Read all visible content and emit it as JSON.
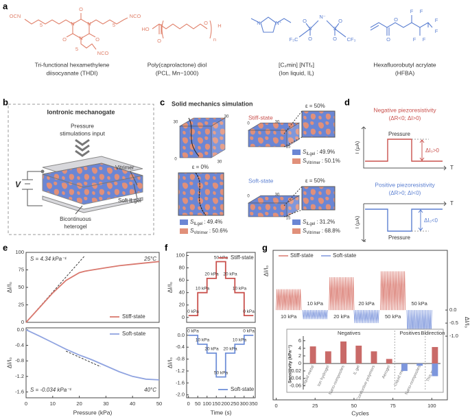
{
  "panels": {
    "a": {
      "label": "a",
      "molecules": [
        {
          "atoms": [
            "OCN",
            "NCO",
            "NCO",
            "O",
            "O",
            "O",
            "N",
            "N",
            "N",
            "5",
            "5",
            "5"
          ],
          "caption": [
            "Tri-functional hexamethylene",
            "diisocyanate (THDI)"
          ]
        },
        {
          "atoms": [
            "HO",
            "O",
            "O",
            "n",
            "H"
          ],
          "caption": [
            "Poly(caprolactone) diol",
            "(PCL, Mn~1000)"
          ]
        },
        {
          "atoms": [
            "N",
            "N⁺",
            "N⁻",
            "S",
            "S",
            "O",
            "O",
            "O",
            "O",
            "F₃C",
            "CF₃"
          ],
          "caption": [
            "[C₂min] [NTf₂]",
            "(Ion liquid, IL)"
          ]
        },
        {
          "atoms": [
            "O",
            "O",
            "F",
            "F",
            "F",
            "F",
            "F",
            "F"
          ],
          "caption": [
            "Hexafluorobutyl acrylate",
            "(HFBA)"
          ]
        }
      ]
    },
    "b": {
      "label": "b",
      "title": "Iontronic mechanogate",
      "input": [
        "Pressure",
        "stimulations input"
      ],
      "voltage": "V",
      "layers": [
        "Vitrimer",
        "Soft ILgel"
      ],
      "heterogel": [
        "Bicontinuous",
        "heterogel"
      ]
    },
    "c": {
      "label": "c",
      "title": "Solid mechanics simulation",
      "symbol": "S",
      "separator": ":",
      "initial": {
        "strain": "ε = 0%",
        "ticks": [
          "30",
          "0",
          "30",
          "30"
        ],
        "fractions": [
          {
            "sub": "ILgel",
            "value": "49.4%"
          },
          {
            "sub": "Vitrimer",
            "value": "50.6%"
          }
        ]
      },
      "states": [
        {
          "name": "Stiff-state",
          "strain": "ε = 50%",
          "ticks": [
            "0",
            "30",
            "15"
          ],
          "fractions": [
            {
              "sub": "ILgel",
              "value": "49.9%"
            },
            {
              "sub": "Vitrimer",
              "value": "50.1%"
            }
          ]
        },
        {
          "name": "Soft-state",
          "strain": "ε = 50%",
          "ticks": [
            "0",
            "30",
            "15"
          ],
          "fractions": [
            {
              "sub": "ILgel",
              "value": "31.2%"
            },
            {
              "sub": "Vitrimer",
              "value": "68.8%"
            }
          ]
        }
      ]
    },
    "d": {
      "label": "d",
      "negative": {
        "title": "Negative piezoresistivity",
        "condition": "(ΔR<0; ΔI>0)",
        "ylabel": "I (μA)",
        "xlabel": "T",
        "pressure": "Pressure",
        "delta": "ΔI₀>0"
      },
      "positive": {
        "title": "Positive piezoresistivity",
        "condition": "(ΔR>0; ΔI<0)",
        "ylabel": "I (μA)",
        "xlabel": "T",
        "pressure": "Pressure",
        "delta": "ΔI₀<0"
      }
    },
    "e": {
      "label": "e"
    },
    "f": {
      "label": "f"
    },
    "g": {
      "label": "g"
    }
  },
  "chart_data": [
    {
      "type": "line",
      "ylabel": "ΔI/I₀",
      "annotations": [
        "S = 4.34 kPa⁻¹",
        "25°C"
      ],
      "x": [
        0,
        5,
        10,
        15,
        20,
        22,
        25,
        30,
        35,
        40,
        45,
        50
      ],
      "xlim": [
        0,
        50
      ],
      "ylim": [
        0,
        100
      ],
      "yticks": [
        0,
        25,
        50,
        75,
        100
      ],
      "series": [
        {
          "name": "Stiff-state",
          "color": "#d9786e",
          "values": [
            0,
            21,
            42,
            60,
            71,
            73,
            75,
            78,
            81,
            83,
            85,
            87
          ]
        }
      ],
      "fit": {
        "x": [
          0,
          22
        ],
        "values": [
          0,
          95
        ]
      }
    },
    {
      "type": "line",
      "ylabel": "ΔI/I₀",
      "xlabel": "Pressure (kPa)",
      "annotations": [
        "S = -0.034 kPa⁻¹",
        "40°C"
      ],
      "x": [
        0,
        5,
        10,
        15,
        20,
        22,
        25,
        30,
        35,
        40,
        45,
        50
      ],
      "xlim": [
        0,
        50
      ],
      "xticks": [
        0,
        10,
        20,
        30,
        40,
        50
      ],
      "ylim": [
        -1.75,
        0.05
      ],
      "yticks": [
        {
          "value": 0,
          "label": "0.0"
        },
        -0.4,
        -0.8,
        -1.2,
        -1.6
      ],
      "series": [
        {
          "name": "Soft-state",
          "color": "#8fa3e0",
          "values": [
            0,
            -0.16,
            -0.33,
            -0.5,
            -0.65,
            -0.7,
            -0.78,
            -0.93,
            -1.08,
            -1.2,
            -1.27,
            -1.29
          ]
        }
      ],
      "fit": {
        "x": [
          15,
          28
        ],
        "values": [
          -0.55,
          -0.95
        ]
      }
    },
    {
      "type": "line",
      "ylabel": "ΔI/I₀",
      "step_labels": [
        "0 kPa",
        "10 kPa",
        "20 kPa",
        "50 kPa",
        "20 kPa",
        "10 kPa",
        "0 kPa"
      ],
      "x": [
        0,
        50,
        50,
        100,
        100,
        150,
        150,
        200,
        200,
        250,
        250,
        300,
        300,
        350
      ],
      "xlim": [
        -10,
        360
      ],
      "ylim": [
        -8,
        105
      ],
      "yticks": [
        0,
        20,
        40,
        60,
        80,
        100
      ],
      "series": [
        {
          "name": "Stiff-state",
          "color": "#c9504c",
          "values": [
            3,
            3,
            40,
            40,
            63,
            63,
            90,
            90,
            63,
            63,
            40,
            40,
            3,
            3
          ]
        }
      ]
    },
    {
      "type": "line",
      "ylabel": "ΔI/I₀",
      "xlabel": "Time (s)",
      "step_labels": [
        "0 kPa",
        "10 kPa",
        "20 kPa",
        "50 kPa",
        "20 kPa",
        "10 kPa",
        "0 kPa"
      ],
      "x": [
        0,
        50,
        50,
        100,
        100,
        150,
        150,
        200,
        200,
        250,
        250,
        300,
        300,
        350
      ],
      "xlim": [
        -10,
        360
      ],
      "xticks": [
        0,
        50,
        100,
        150,
        200,
        250,
        300,
        350
      ],
      "ylim": [
        -2.1,
        0.25
      ],
      "yticks": [
        {
          "value": 0,
          "label": "0.0"
        },
        -0.4,
        -0.8,
        -1.2,
        -1.6,
        {
          "value": -2,
          "label": "-2.0"
        }
      ],
      "series": [
        {
          "name": "Soft-state",
          "color": "#6f8fd8",
          "values": [
            0,
            0,
            -0.3,
            -0.3,
            -0.6,
            -0.6,
            -1.4,
            -1.4,
            -0.6,
            -0.6,
            -0.3,
            -0.3,
            0,
            0
          ]
        }
      ]
    },
    {
      "type": "cycles",
      "ylabel": "ΔI/I₀",
      "y2label": "ΔI/I₀",
      "xlabel": "Cycles",
      "labels": [
        "10 kPa",
        "20 kPa",
        "50 kPa"
      ],
      "xlim": [
        -2,
        110
      ],
      "xticks": [
        0,
        25,
        50,
        75,
        100
      ],
      "ylim": [
        -55,
        100
      ],
      "y2lim": [
        -1.26,
        2.29
      ],
      "y2ticks": [
        {
          "value": 0,
          "label": "0.0"
        },
        -0.5,
        {
          "value": -1,
          "label": "-1.0"
        }
      ],
      "series": [
        {
          "name": "Stiff-state",
          "color": "#d9786e",
          "values": [
            35,
            55,
            65
          ],
          "cycles": [
            [
              0,
              16
            ],
            [
              34,
              50
            ],
            [
              67,
              83
            ]
          ]
        },
        {
          "name": "Soft-state",
          "color": "#7d96dc",
          "axis": "y2",
          "values": [
            -0.35,
            -0.5,
            -1.0
          ],
          "cycles": [
            [
              17,
              33
            ],
            [
              50,
              66
            ],
            [
              84,
              100
            ]
          ]
        }
      ]
    },
    {
      "type": "bar",
      "ylabel": "Sensitivity (kPa⁻¹)",
      "groups": [
        {
          "label": "Negatives",
          "categories": [
            "Liquid metal",
            "Ion hydrogel",
            "Nano-composites",
            "IL gel",
            "Conductive polymers",
            "Aerogel"
          ]
        },
        {
          "label": "Positives",
          "categories": [
            "Liquid metal",
            "Nano-composites"
          ]
        },
        {
          "label": "Bidirection",
          "categories": [
            "This work"
          ]
        }
      ],
      "ylim": [
        0,
        6.5
      ],
      "yticks": [
        0,
        2,
        4,
        6
      ],
      "y2lim": [
        -0.07,
        0
      ],
      "y2ticks": [
        -0.02,
        -0.04,
        -0.06
      ],
      "series": [
        {
          "color": "#c96a68",
          "values": [
            4.5,
            3.2,
            5.8,
            4.7,
            3.2,
            1.2,
            null,
            null,
            4.34
          ]
        },
        {
          "color": "#7d96dc",
          "axis": "y2",
          "values": [
            null,
            null,
            null,
            null,
            null,
            null,
            -0.02,
            -0.006,
            -0.034
          ]
        }
      ]
    }
  ]
}
